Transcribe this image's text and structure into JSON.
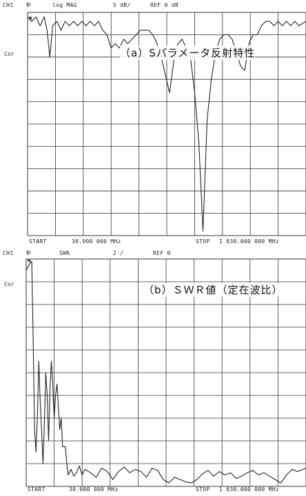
{
  "panel_a": {
    "header": {
      "ch": "CH1",
      "param": "S",
      "param_sub": "11",
      "format": "log MAG",
      "scale": "5 dB/",
      "ref": "REF 0 dB"
    },
    "cor": "Cor",
    "marker": "▣",
    "caption": "（a）Sパラメータ反射特性",
    "start_label": "START",
    "start_value": "30.000 000 MHz",
    "stop_label": "STOP",
    "stop_value": "1 030.000 000 MHz"
  },
  "panel_b": {
    "header": {
      "ch": "CH1",
      "param": "S",
      "param_sub": "11",
      "format": "SWR",
      "scale": "2 /",
      "ref": "REF 0"
    },
    "cor": "Cor",
    "marker": "▣",
    "caption": "（b）ＳＷＲ値（定在波比）",
    "start_label": "START",
    "start_value": "30.000 000 MHz",
    "stop_label": "STOP",
    "stop_value": "1 030.000 000 MHz"
  },
  "chart_data": [
    {
      "type": "line",
      "title": "（a）Sパラメータ反射特性",
      "xlabel": "",
      "ylabel": "",
      "xlim": [
        30,
        1030
      ],
      "ylim": [
        -50,
        0
      ],
      "grid": true,
      "series": [
        {
          "x": [
            30,
            45,
            60,
            75,
            90,
            100,
            110,
            120,
            135,
            150,
            165,
            180,
            195,
            210,
            225,
            240,
            255,
            270,
            285,
            300,
            315,
            330,
            345,
            360,
            375,
            390,
            405,
            420,
            435,
            450,
            465,
            480,
            495,
            510,
            525,
            540,
            555,
            570,
            585,
            600,
            615,
            630,
            645,
            660,
            675,
            690,
            705,
            720,
            735,
            750,
            765,
            780,
            795,
            810,
            825,
            840,
            855,
            870,
            885,
            900,
            915,
            930,
            945,
            960,
            975,
            990,
            1005,
            1030
          ],
          "y": [
            -1,
            -2,
            -1,
            -3,
            -1,
            -4,
            -10,
            -3,
            -2,
            -4,
            -2,
            -3,
            -2,
            -3,
            -2,
            -3,
            -2,
            -3,
            -2,
            -4,
            -5,
            -8,
            -7,
            -8,
            -6,
            -7,
            -6,
            -5,
            -4,
            -4,
            -4,
            -5,
            -7,
            -10,
            -14,
            -18,
            -11,
            -7,
            -6,
            -8,
            -10,
            -18,
            -29,
            -49,
            -24,
            -15,
            -9,
            -6,
            -5,
            -5,
            -6,
            -9,
            -12,
            -13,
            -7,
            -5,
            -5,
            -3,
            -2,
            -2,
            -3,
            -2,
            -3,
            -2,
            -3,
            -2,
            -3,
            -2
          ]
        }
      ]
    },
    {
      "type": "line",
      "title": "（b）ＳＷＲ値（定在波比）",
      "xlabel": "",
      "ylabel": "",
      "xlim": [
        30,
        1030
      ],
      "ylim": [
        0,
        20
      ],
      "grid": true,
      "series": [
        {
          "x": [
            30,
            40,
            50,
            55,
            60,
            65,
            70,
            75,
            80,
            85,
            90,
            95,
            100,
            105,
            110,
            115,
            120,
            125,
            130,
            135,
            140,
            145,
            150,
            155,
            160,
            165,
            170,
            175,
            180,
            190,
            200,
            210,
            220,
            230,
            240,
            260,
            280,
            300,
            320,
            340,
            360,
            380,
            400,
            420,
            440,
            460,
            480,
            500,
            520,
            540,
            560,
            580,
            600,
            620,
            640,
            660,
            680,
            700,
            720,
            740,
            760,
            780,
            800,
            820,
            840,
            860,
            880,
            900,
            920,
            940,
            960,
            980,
            1000,
            1030
          ],
          "y": [
            19,
            19.5,
            19.8,
            13,
            5,
            3,
            6,
            11,
            7.5,
            5,
            2,
            5.5,
            10,
            8,
            4,
            8.5,
            11,
            9,
            6,
            8,
            9,
            7,
            5,
            6,
            3.5,
            3.5,
            3.5,
            2,
            1,
            1.5,
            0.9,
            1.2,
            1.8,
            1.0,
            1.5,
            1.2,
            0.8,
            1.6,
            1.3,
            0.6,
            1.3,
            1.7,
            1.2,
            1.5,
            1.3,
            0.8,
            1.6,
            1.4,
            0.6,
            0.3,
            0.8,
            0.6,
            0.4,
            0.3,
            0.6,
            1.1,
            1.4,
            0.9,
            1.3,
            1.0,
            1.2,
            0.7,
            0.9,
            1.2,
            1.4,
            1.0,
            1.2,
            0.9,
            0.6,
            0.3,
            1.0,
            1.5,
            1.3,
            1.6
          ]
        }
      ]
    }
  ]
}
